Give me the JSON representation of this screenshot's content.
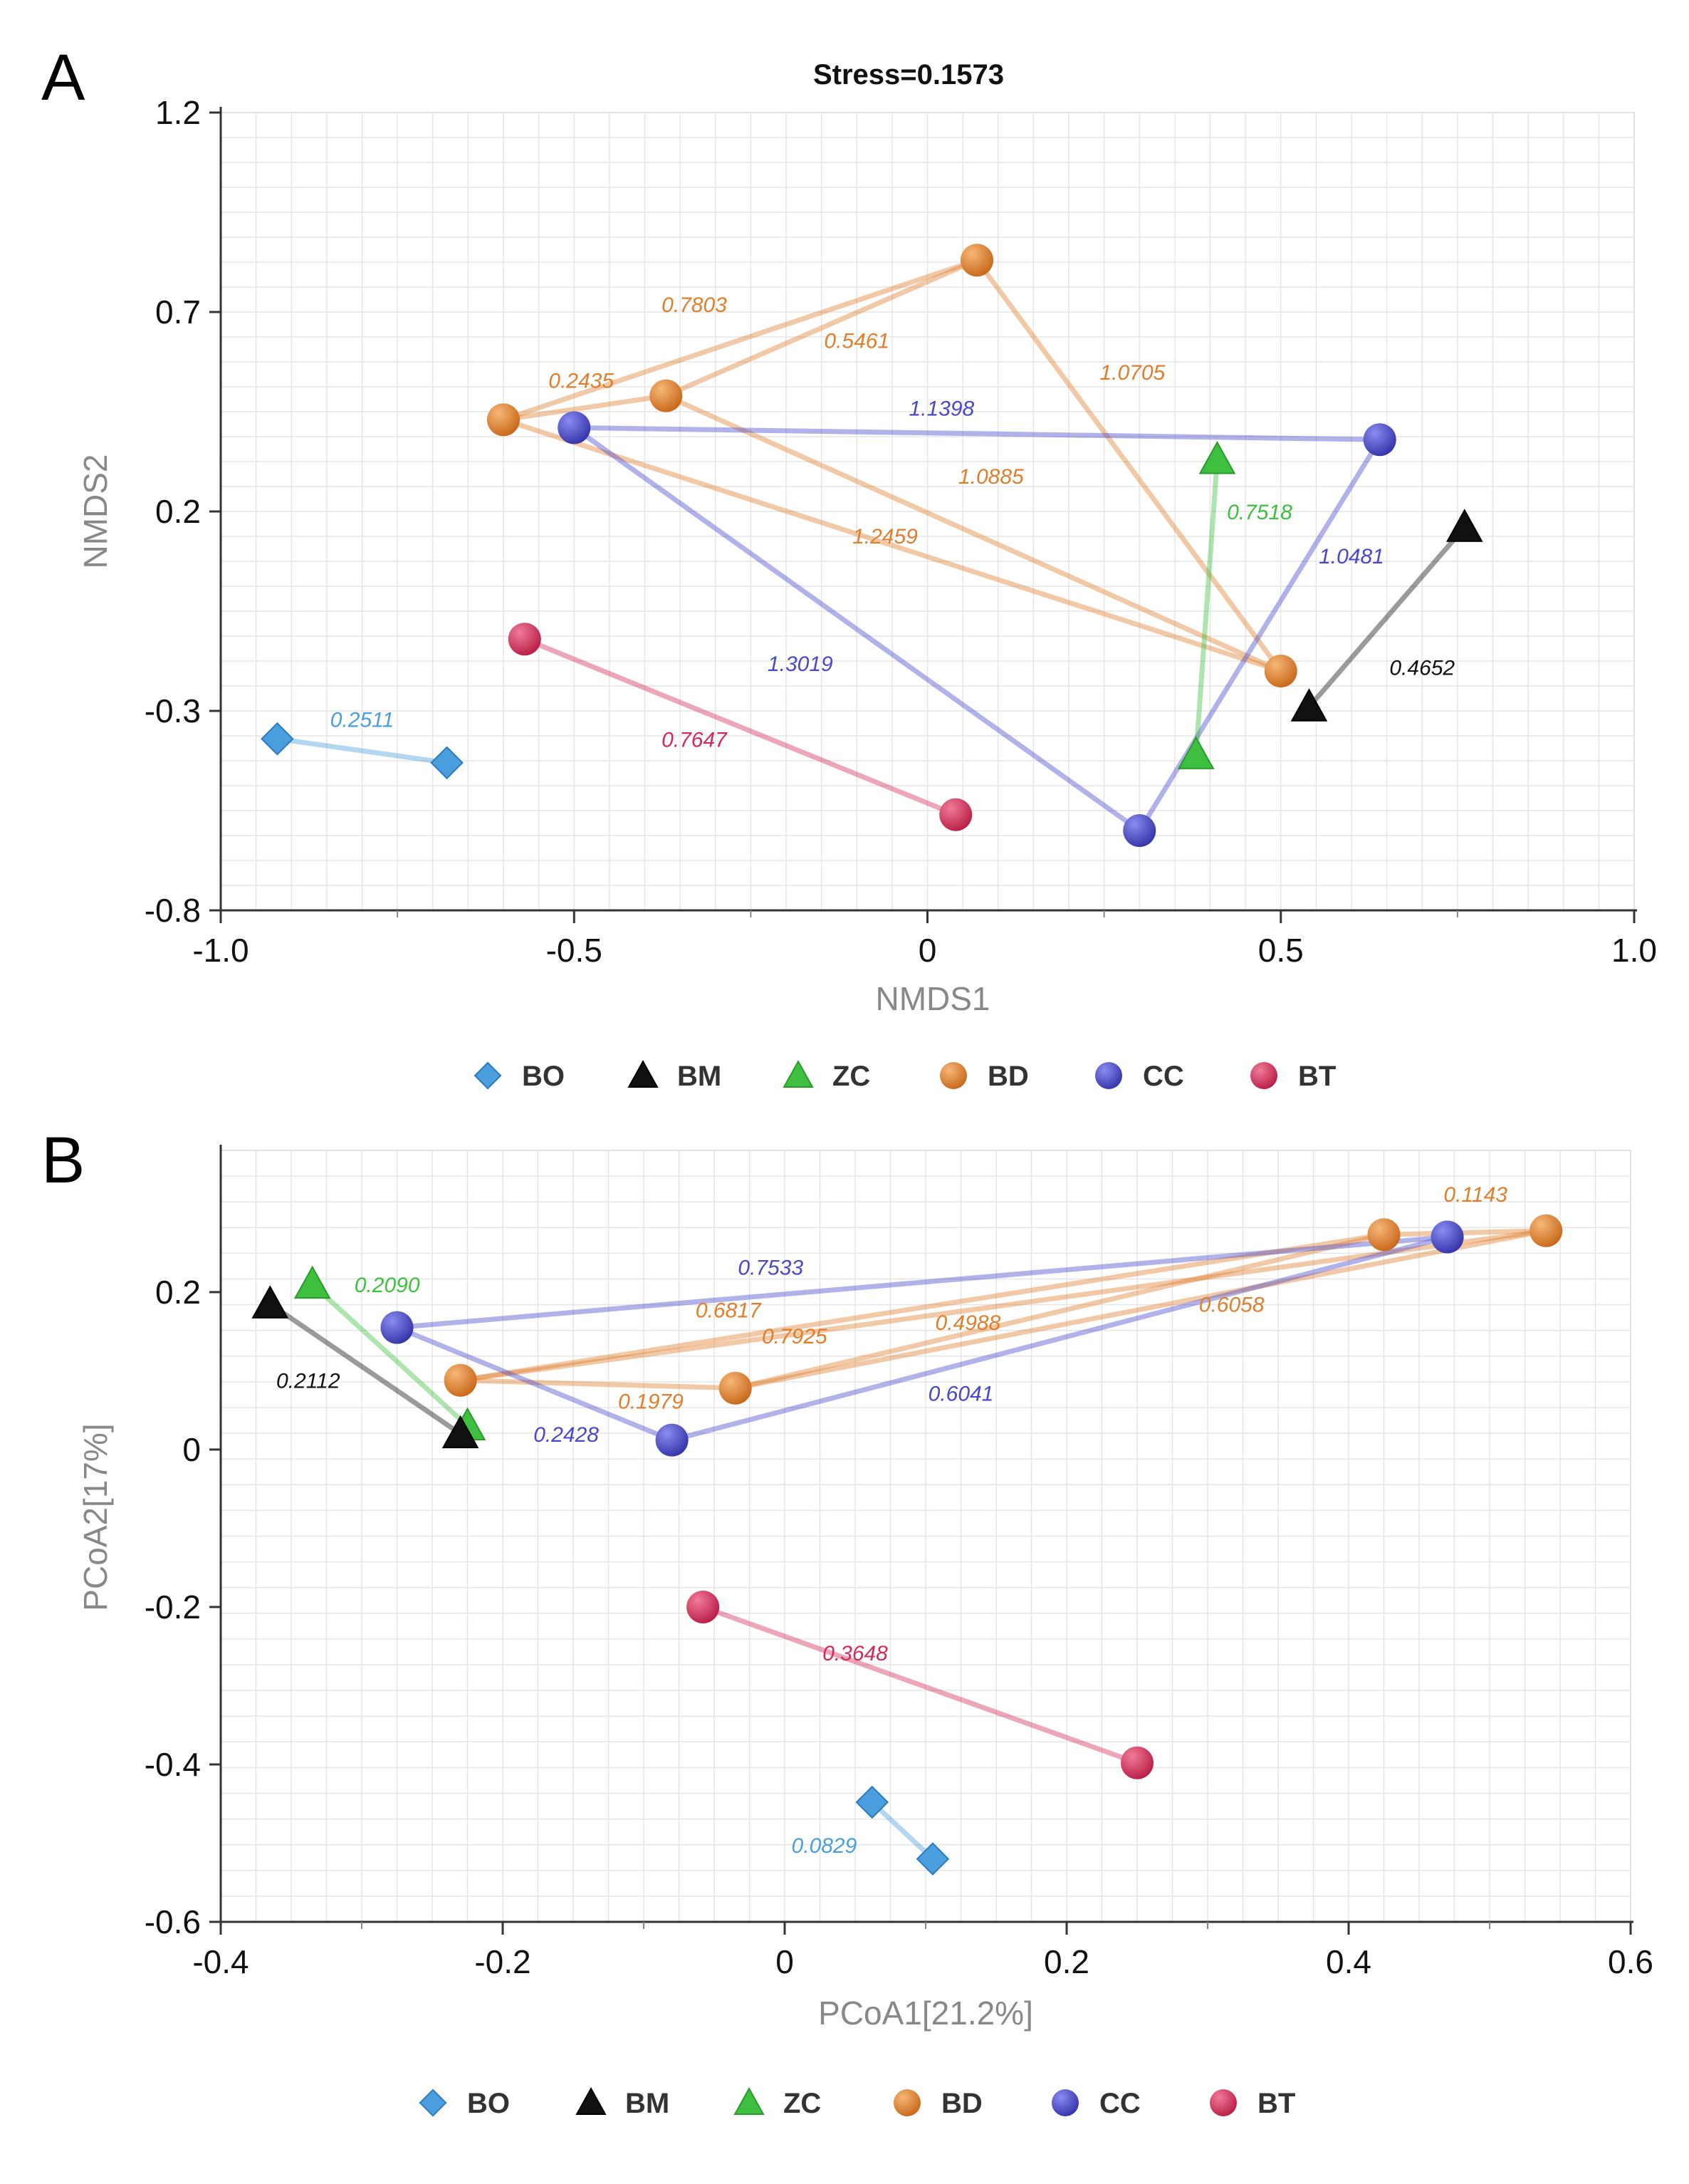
{
  "colors": {
    "BO": "#4a9ede",
    "BM": "#111111",
    "ZC": "#3fbf3f",
    "BD": "#e07e2c",
    "CC": "#4848cc",
    "BT": "#d42a57"
  },
  "legend": [
    {
      "key": "BO",
      "label": "BO",
      "shape": "diamond"
    },
    {
      "key": "BM",
      "label": "BM",
      "shape": "triangle"
    },
    {
      "key": "ZC",
      "label": "ZC",
      "shape": "triangle"
    },
    {
      "key": "BD",
      "label": "BD",
      "shape": "circle"
    },
    {
      "key": "CC",
      "label": "CC",
      "shape": "circle"
    },
    {
      "key": "BT",
      "label": "BT",
      "shape": "circle"
    }
  ],
  "chart_data": [
    {
      "panel": "A",
      "type": "scatter",
      "title": "Stress=0.1573",
      "xlabel": "NMDS1",
      "ylabel": "NMDS2",
      "xlim": [
        -1.0,
        1.0
      ],
      "ylim": [
        -0.8,
        1.2
      ],
      "xticks": [
        -1.0,
        -0.5,
        0,
        0.5,
        1.0
      ],
      "xtick_labels": [
        "-1.0",
        "-0.5",
        "0",
        "0.5",
        "1.0"
      ],
      "yticks": [
        1.2,
        0.7,
        0.2,
        -0.3,
        -0.8
      ],
      "ytick_labels": [
        "1.2",
        "0.7",
        "0.2",
        "-0.3",
        "-0.8"
      ],
      "points": [
        {
          "id": "BD1",
          "group": "BD",
          "x": 0.07,
          "y": 0.83
        },
        {
          "id": "BD2",
          "group": "BD",
          "x": -0.6,
          "y": 0.43
        },
        {
          "id": "BD3",
          "group": "BD",
          "x": -0.37,
          "y": 0.49
        },
        {
          "id": "BD4",
          "group": "BD",
          "x": 0.5,
          "y": -0.2
        },
        {
          "id": "CC1",
          "group": "CC",
          "x": -0.5,
          "y": 0.41
        },
        {
          "id": "CC2",
          "group": "CC",
          "x": 0.64,
          "y": 0.38
        },
        {
          "id": "CC3",
          "group": "CC",
          "x": 0.3,
          "y": -0.6
        },
        {
          "id": "ZC1",
          "group": "ZC",
          "x": 0.41,
          "y": 0.33
        },
        {
          "id": "ZC2",
          "group": "ZC",
          "x": 0.38,
          "y": -0.41
        },
        {
          "id": "BM1",
          "group": "BM",
          "x": 0.76,
          "y": 0.16
        },
        {
          "id": "BM2",
          "group": "BM",
          "x": 0.54,
          "y": -0.29
        },
        {
          "id": "BT1",
          "group": "BT",
          "x": -0.57,
          "y": -0.12
        },
        {
          "id": "BT2",
          "group": "BT",
          "x": 0.04,
          "y": -0.56
        },
        {
          "id": "BO1",
          "group": "BO",
          "x": -0.92,
          "y": -0.37
        },
        {
          "id": "BO2",
          "group": "BO",
          "x": -0.68,
          "y": -0.43
        }
      ],
      "links": [
        {
          "from": "BD2",
          "to": "BD1",
          "group": "BD",
          "label": "0.7803",
          "lx": -0.33,
          "ly": 0.7
        },
        {
          "from": "BD3",
          "to": "BD1",
          "group": "BD",
          "label": "0.5461",
          "lx": -0.1,
          "ly": 0.61
        },
        {
          "from": "BD2",
          "to": "BD3",
          "group": "BD",
          "label": "0.2435",
          "lx": -0.49,
          "ly": 0.51
        },
        {
          "from": "BD1",
          "to": "BD4",
          "group": "BD",
          "label": "1.0705",
          "lx": 0.29,
          "ly": 0.53
        },
        {
          "from": "BD3",
          "to": "BD4",
          "group": "BD",
          "label": "1.0885",
          "lx": 0.09,
          "ly": 0.27
        },
        {
          "from": "BD2",
          "to": "BD4",
          "group": "BD",
          "label": "1.2459",
          "lx": -0.06,
          "ly": 0.12
        },
        {
          "from": "CC1",
          "to": "CC2",
          "group": "CC",
          "label": "1.1398",
          "lx": 0.02,
          "ly": 0.44
        },
        {
          "from": "CC2",
          "to": "CC3",
          "group": "CC",
          "label": "1.0481",
          "lx": 0.6,
          "ly": 0.07
        },
        {
          "from": "CC1",
          "to": "CC3",
          "group": "CC",
          "label": "1.3019",
          "lx": -0.18,
          "ly": -0.2
        },
        {
          "from": "ZC1",
          "to": "ZC2",
          "group": "ZC",
          "label": "0.7518",
          "lx": 0.47,
          "ly": 0.18
        },
        {
          "from": "BM1",
          "to": "BM2",
          "group": "BM",
          "label": "0.4652",
          "lx": 0.7,
          "ly": -0.21
        },
        {
          "from": "BT1",
          "to": "BT2",
          "group": "BT",
          "label": "0.7647",
          "lx": -0.33,
          "ly": -0.39
        },
        {
          "from": "BO1",
          "to": "BO2",
          "group": "BO",
          "label": "0.2511",
          "lx": -0.8,
          "ly": -0.34
        }
      ]
    },
    {
      "panel": "B",
      "type": "scatter",
      "title": "",
      "xlabel": "PCoA1[21.2%]",
      "ylabel": "PCoA2[17%]",
      "xlim": [
        -0.4,
        0.6
      ],
      "ylim": [
        -0.6,
        0.38
      ],
      "xticks": [
        -0.4,
        -0.2,
        0,
        0.2,
        0.4,
        0.6
      ],
      "xtick_labels": [
        "-0.4",
        "-0.2",
        "0",
        "0.2",
        "0.4",
        "0.6"
      ],
      "yticks": [
        0.2,
        0,
        -0.2,
        -0.4,
        -0.6
      ],
      "ytick_labels": [
        "0.2",
        "0",
        "-0.2",
        "-0.4",
        "-0.6"
      ],
      "points": [
        {
          "id": "BD1",
          "group": "BD",
          "x": -0.23,
          "y": 0.088
        },
        {
          "id": "BD2",
          "group": "BD",
          "x": -0.035,
          "y": 0.078
        },
        {
          "id": "BD3",
          "group": "BD",
          "x": 0.425,
          "y": 0.273
        },
        {
          "id": "BD4",
          "group": "BD",
          "x": 0.54,
          "y": 0.278
        },
        {
          "id": "CC1",
          "group": "CC",
          "x": -0.275,
          "y": 0.155
        },
        {
          "id": "CC2",
          "group": "CC",
          "x": -0.08,
          "y": 0.012
        },
        {
          "id": "CC3",
          "group": "CC",
          "x": 0.47,
          "y": 0.27
        },
        {
          "id": "ZC1",
          "group": "ZC",
          "x": -0.335,
          "y": 0.21
        },
        {
          "id": "ZC2",
          "group": "ZC",
          "x": -0.225,
          "y": 0.03
        },
        {
          "id": "BM1",
          "group": "BM",
          "x": -0.365,
          "y": 0.185
        },
        {
          "id": "BM2",
          "group": "BM",
          "x": -0.23,
          "y": 0.02
        },
        {
          "id": "BT1",
          "group": "BT",
          "x": -0.058,
          "y": -0.2
        },
        {
          "id": "BT2",
          "group": "BT",
          "x": 0.25,
          "y": -0.398
        },
        {
          "id": "BO1",
          "group": "BO",
          "x": 0.062,
          "y": -0.448
        },
        {
          "id": "BO2",
          "group": "BO",
          "x": 0.105,
          "y": -0.52
        }
      ],
      "links": [
        {
          "from": "BD3",
          "to": "BD4",
          "group": "BD",
          "label": "0.1143",
          "lx": 0.49,
          "ly": 0.315
        },
        {
          "from": "BD1",
          "to": "BD4",
          "group": "BD",
          "label": "0.6817",
          "lx": -0.04,
          "ly": 0.168
        },
        {
          "from": "BD2",
          "to": "BD4",
          "group": "BD",
          "label": "0.7925",
          "lx": 0.007,
          "ly": 0.135
        },
        {
          "from": "BD2",
          "to": "BD3",
          "group": "BD",
          "label": "0.4988",
          "lx": 0.13,
          "ly": 0.152
        },
        {
          "from": "BD1",
          "to": "BD3",
          "group": "BD",
          "label": "0.6058",
          "lx": 0.317,
          "ly": 0.175
        },
        {
          "from": "BD1",
          "to": "BD2",
          "group": "BD",
          "label": "0.1979",
          "lx": -0.095,
          "ly": 0.052
        },
        {
          "from": "CC1",
          "to": "CC3",
          "group": "CC",
          "label": "0.7533",
          "lx": -0.01,
          "ly": 0.222
        },
        {
          "from": "CC2",
          "to": "CC3",
          "group": "CC",
          "label": "0.6041",
          "lx": 0.125,
          "ly": 0.062
        },
        {
          "from": "CC1",
          "to": "CC2",
          "group": "CC",
          "label": "0.2428",
          "lx": -0.155,
          "ly": 0.01
        },
        {
          "from": "ZC1",
          "to": "ZC2",
          "group": "ZC",
          "label": "0.2090",
          "lx": -0.282,
          "ly": 0.2
        },
        {
          "from": "BM1",
          "to": "BM2",
          "group": "BM",
          "label": "0.2112",
          "lx": -0.338,
          "ly": 0.078
        },
        {
          "from": "BT1",
          "to": "BT2",
          "group": "BT",
          "label": "0.3648",
          "lx": 0.05,
          "ly": -0.268
        },
        {
          "from": "BO1",
          "to": "BO2",
          "group": "BO",
          "label": "0.0829",
          "lx": 0.028,
          "ly": -0.512
        }
      ]
    }
  ]
}
